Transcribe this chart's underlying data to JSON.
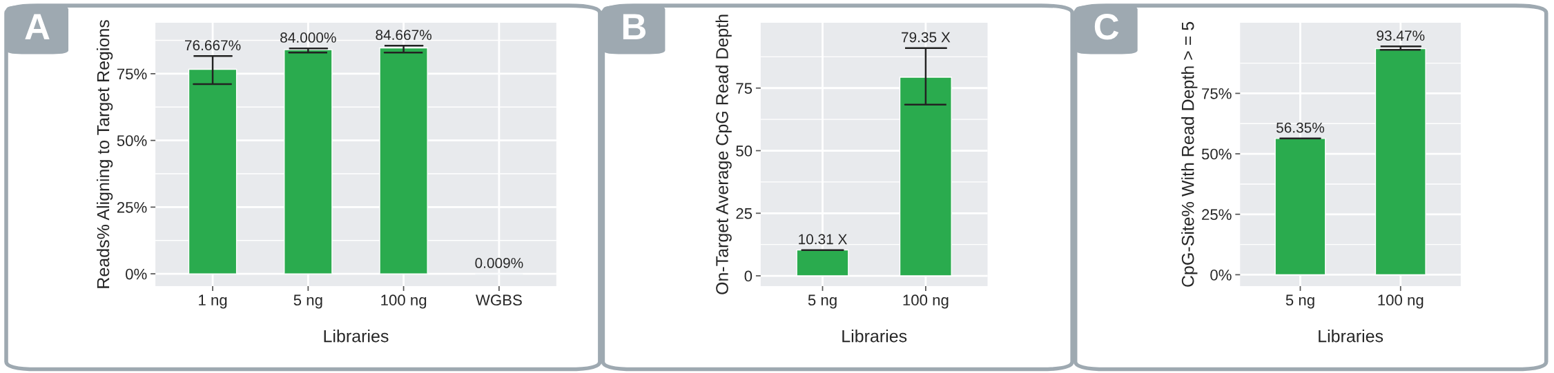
{
  "chart_data": [
    {
      "type": "bar",
      "categories": [
        "1 ng",
        "5 ng",
        "100 ng",
        "WGBS"
      ],
      "values": [
        76.667,
        84.0,
        84.667,
        0.009
      ],
      "colors": [
        "#2aab4e",
        "#2aab4e",
        "#2aab4e",
        "#1f5b97"
      ],
      "errors": [
        [
          71.1,
          81.6
        ],
        [
          82.9,
          84.5
        ],
        [
          82.9,
          85.5
        ],
        null
      ],
      "value_labels": [
        "76.667%",
        "84.000%",
        "84.667%",
        "0.009%"
      ],
      "xlabel": "Libraries",
      "ylabel": "Reads% Aligning to Target Regions",
      "ylim": [
        -4.6,
        94.1
      ],
      "yticks": [
        {
          "value": 0,
          "label": "0%"
        },
        {
          "value": 25,
          "label": "25%"
        },
        {
          "value": 50,
          "label": "50%"
        },
        {
          "value": 75,
          "label": "75%"
        }
      ],
      "grid": true,
      "annotations": [
        "A"
      ]
    },
    {
      "type": "bar",
      "categories": [
        "5 ng",
        "100 ng"
      ],
      "values": [
        10.31,
        79.35
      ],
      "colors": [
        "#2aab4e",
        "#2aab4e"
      ],
      "errors": [
        0,
        [
          68.4,
          91.0
        ]
      ],
      "value_labels": [
        "10.31 X",
        "79.35 X"
      ],
      "xlabel": "Libraries",
      "ylabel": "On-Target Average CpG Read Depth",
      "ylim": [
        -4.1,
        101.1
      ],
      "yticks": [
        0,
        25,
        50,
        75
      ],
      "grid": true,
      "annotations": [
        "B"
      ]
    },
    {
      "type": "bar",
      "categories": [
        "5 ng",
        "100 ng"
      ],
      "values": [
        56.35,
        93.47
      ],
      "colors": [
        "#2aab4e",
        "#2aab4e"
      ],
      "errors": [
        0,
        [
          93.0,
          94.4
        ]
      ],
      "value_labels": [
        "56.35%",
        "93.47%"
      ],
      "xlabel": "Libraries",
      "ylabel": "CpG-Site% With Read Depth > = 5",
      "ylim": [
        -4.7,
        104.2
      ],
      "yticks": [
        {
          "value": 0,
          "label": "0%"
        },
        {
          "value": 25,
          "label": "25%"
        },
        {
          "value": 50,
          "label": "50%"
        },
        {
          "value": 75,
          "label": "75%"
        }
      ],
      "grid": true,
      "annotations": [
        "C"
      ]
    }
  ]
}
